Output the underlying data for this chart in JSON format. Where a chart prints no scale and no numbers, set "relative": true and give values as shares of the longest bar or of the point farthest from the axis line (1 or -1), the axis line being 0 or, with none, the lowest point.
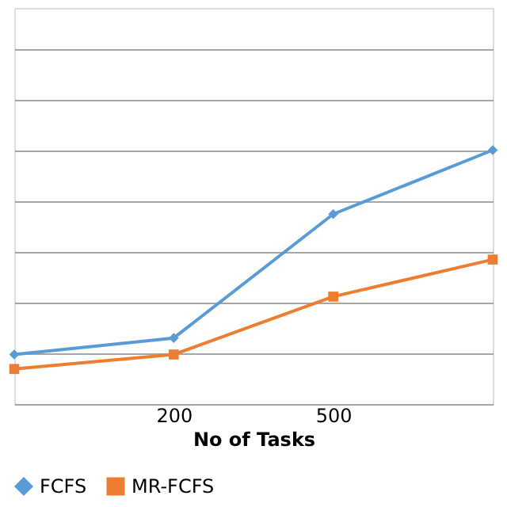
{
  "chart_data": {
    "type": "line",
    "relative": true,
    "xlabel": "No of Tasks",
    "categories": [
      null,
      "200",
      "500",
      null
    ],
    "grid": "y",
    "legend": "bottom",
    "tick_labels": "x",
    "series": [
      {
        "name": "FCFS",
        "color": "#5b9bd5",
        "marker": "diamond",
        "values": [
          0.195,
          0.26,
          0.748,
          1
        ]
      },
      {
        "name": "MR-FCFS",
        "color": "#ed7d31",
        "marker": "square",
        "values": [
          0.138,
          0.195,
          0.423,
          0.569
        ]
      }
    ]
  }
}
